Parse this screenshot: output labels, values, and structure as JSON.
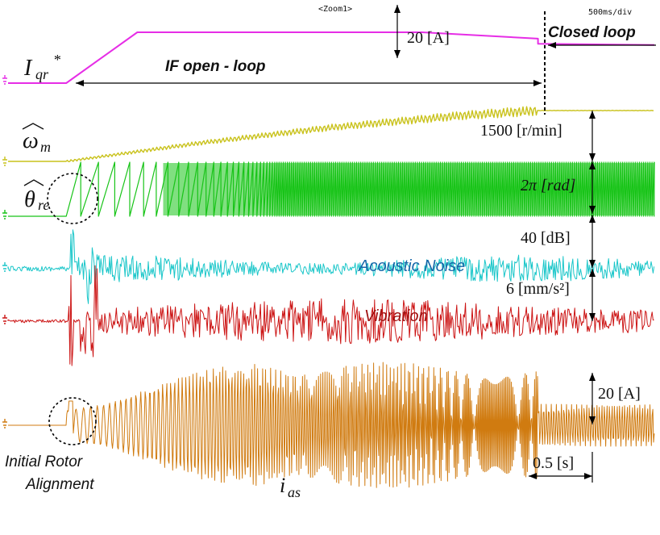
{
  "header": {
    "zoom_label": "<Zoom1>",
    "timebase": "500ms/div"
  },
  "labels": {
    "iqr_ref": "I",
    "iqr_sub": "qr",
    "iqr_sup": "*",
    "omega": "ω",
    "omega_sub": "m",
    "theta": "θ",
    "theta_sub": "re",
    "ias": "i",
    "ias_sub": "as",
    "if_open_loop": "IF open - loop",
    "closed_loop": "Closed loop",
    "acoustic_noise": "Acoustic Noise",
    "vibration": "Vibration",
    "initial_rotor_line1": "Initial Rotor",
    "initial_rotor_line2": "Alignment"
  },
  "scales": {
    "iqr_scale": "20 [A]",
    "speed_scale": "1500 [r/min]",
    "angle_scale": "2π [rad]",
    "noise_scale": "40 [dB]",
    "vib_scale": "6 [mm/s²]",
    "ias_scale": "20 [A]",
    "time_scale": "0.5 [s]"
  },
  "colors": {
    "iqr": "#e62ee6",
    "omega": "#c9c21c",
    "theta": "#18c418",
    "noise": "#19c6c9",
    "vibration": "#cc1414",
    "ias": "#d07b10",
    "marker": "#000000"
  },
  "chart_data": {
    "type": "line",
    "x_unit": "s",
    "x_div": 0.5,
    "x_range": [
      0,
      5
    ],
    "transition_time": 4.1,
    "series": [
      {
        "name": "I_qr*",
        "x": [
          0,
          0.45,
          1.0,
          3.2,
          4.1,
          4.1,
          5.0
        ],
        "y": [
          0,
          0,
          20,
          20,
          17.5,
          15.5,
          15
        ]
      },
      {
        "name": "ω_m",
        "x": [
          0,
          0.45,
          1.5,
          2.5,
          3.5,
          4.1,
          5.0
        ],
        "y": [
          0,
          0,
          550,
          1000,
          1350,
          1500,
          1500
        ]
      },
      {
        "name": "θ_re",
        "x": [
          0,
          0.45,
          0.55
        ],
        "y": [
          0,
          0,
          6.28
        ]
      },
      {
        "name": "Acoustic Noise"
      },
      {
        "name": "Vibration"
      },
      {
        "name": "i_as"
      }
    ]
  }
}
